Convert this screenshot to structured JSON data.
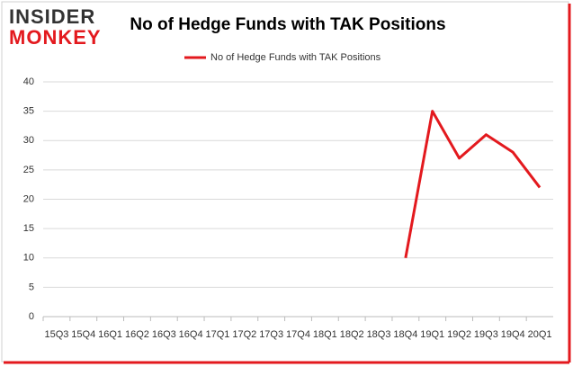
{
  "logo": {
    "line1": "INSIDER",
    "line2": "MONKEY"
  },
  "chart_data": {
    "type": "line",
    "title": "No of Hedge Funds with TAK Positions",
    "categories": [
      "15Q3",
      "15Q4",
      "16Q1",
      "16Q2",
      "16Q3",
      "16Q4",
      "17Q1",
      "17Q2",
      "17Q3",
      "17Q4",
      "18Q1",
      "18Q2",
      "18Q3",
      "18Q4",
      "19Q1",
      "19Q2",
      "19Q3",
      "19Q4",
      "20Q1"
    ],
    "series": [
      {
        "name": "No of Hedge Funds with TAK Positions",
        "color": "#e3191e",
        "values": [
          null,
          null,
          null,
          null,
          null,
          null,
          null,
          null,
          null,
          null,
          null,
          null,
          null,
          10,
          35,
          27,
          31,
          28,
          22
        ]
      }
    ],
    "ylim": [
      0,
      40
    ],
    "yticks": [
      0,
      5,
      10,
      15,
      20,
      25,
      30,
      35,
      40
    ],
    "grid": true,
    "legend": "top"
  }
}
